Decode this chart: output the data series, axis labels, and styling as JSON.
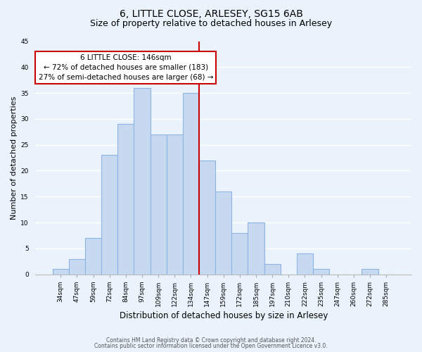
{
  "title": "6, LITTLE CLOSE, ARLESEY, SG15 6AB",
  "subtitle": "Size of property relative to detached houses in Arlesey",
  "xlabel": "Distribution of detached houses by size in Arlesey",
  "ylabel": "Number of detached properties",
  "bar_labels": [
    "34sqm",
    "47sqm",
    "59sqm",
    "72sqm",
    "84sqm",
    "97sqm",
    "109sqm",
    "122sqm",
    "134sqm",
    "147sqm",
    "159sqm",
    "172sqm",
    "185sqm",
    "197sqm",
    "210sqm",
    "222sqm",
    "235sqm",
    "247sqm",
    "260sqm",
    "272sqm",
    "285sqm"
  ],
  "bar_values": [
    1,
    3,
    7,
    23,
    29,
    36,
    27,
    27,
    35,
    22,
    16,
    8,
    10,
    2,
    0,
    4,
    1,
    0,
    0,
    1,
    0
  ],
  "bar_color": "#c6d9f0",
  "bar_edgecolor": "#8db4e2",
  "vline_color": "#cc0000",
  "ylim": [
    0,
    45
  ],
  "yticks": [
    0,
    5,
    10,
    15,
    20,
    25,
    30,
    35,
    40,
    45
  ],
  "annotation_title": "6 LITTLE CLOSE: 146sqm",
  "annotation_line1": "← 72% of detached houses are smaller (183)",
  "annotation_line2": "27% of semi-detached houses are larger (68) →",
  "annotation_box_facecolor": "#ffffff",
  "annotation_box_edgecolor": "#cc0000",
  "footer1": "Contains HM Land Registry data © Crown copyright and database right 2024.",
  "footer2": "Contains public sector information licensed under the Open Government Licence v3.0.",
  "bg_color": "#eaf3fb",
  "grid_color": "#ffffff",
  "title_fontsize": 10,
  "subtitle_fontsize": 9,
  "ylabel_fontsize": 8,
  "xlabel_fontsize": 8.5,
  "tick_fontsize": 6.5,
  "annot_fontsize": 7.5,
  "footer_fontsize": 5.5
}
